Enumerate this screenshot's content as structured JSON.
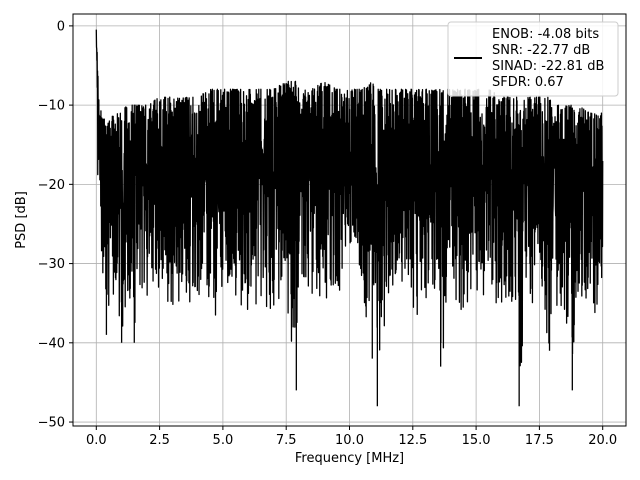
{
  "chart_data": {
    "type": "line",
    "title": "",
    "xlabel": "Frequency [MHz]",
    "ylabel": "PSD [dB]",
    "xlim": [
      -0.92,
      20.92
    ],
    "ylim": [
      -50.5,
      1.5
    ],
    "xticks": [
      0.0,
      2.5,
      5.0,
      7.5,
      10.0,
      12.5,
      15.0,
      17.5,
      20.0
    ],
    "xtick_labels": [
      "0.0",
      "2.5",
      "5.0",
      "7.5",
      "10.0",
      "12.5",
      "15.0",
      "17.5",
      "20.0"
    ],
    "yticks": [
      0,
      -10,
      -20,
      -30,
      -40,
      -50
    ],
    "ytick_labels": [
      "0",
      "−10",
      "−20",
      "−30",
      "−40",
      "−50"
    ],
    "grid": true,
    "legend": {
      "placement": "top-right",
      "entries": [
        "ENOB: -4.08 bits",
        "SNR: -22.77 dB",
        "SINAD: -22.81 dB",
        "SFDR: 0.67"
      ]
    },
    "series": [
      {
        "color": "#000000",
        "x": [
          0.0,
          0.02,
          0.04,
          0.06,
          0.08,
          0.1,
          0.15,
          0.2,
          0.25,
          0.3,
          0.4,
          0.5,
          0.6,
          0.8,
          1.0,
          1.2,
          1.5,
          1.7,
          2.0,
          2.5,
          3.0,
          3.5,
          4.0,
          4.5,
          4.7,
          5.0,
          5.5,
          6.0,
          6.5,
          7.0,
          7.5,
          7.9,
          8.0,
          8.5,
          9.0,
          9.5,
          10.0,
          10.5,
          10.9,
          11.0,
          11.1,
          11.5,
          12.0,
          12.5,
          13.0,
          13.5,
          13.6,
          14.0,
          14.5,
          15.0,
          15.5,
          16.0,
          16.5,
          16.7,
          17.0,
          17.5,
          17.9,
          18.0,
          18.5,
          18.8,
          19.0,
          19.5,
          20.0
        ],
        "lower": [
          -2,
          -8,
          -14,
          -20,
          -26,
          -22,
          -25,
          -36,
          -34,
          -30,
          -39,
          -35,
          -34,
          -37,
          -40,
          -34,
          -40,
          -33,
          -34,
          -35,
          -36,
          -35,
          -36,
          -34,
          -38,
          -33,
          -35,
          -37,
          -35,
          -36,
          -34,
          -46,
          -33,
          -34,
          -35,
          -34,
          -33,
          -35,
          -42,
          -34,
          -48,
          -35,
          -34,
          -38,
          -36,
          -34,
          -43,
          -35,
          -36,
          -34,
          -35,
          -36,
          -35,
          -48,
          -36,
          -34,
          -41,
          -35,
          -36,
          -46,
          -34,
          -36,
          -37
        ],
        "upper": [
          0,
          -2,
          -4,
          -6,
          -7,
          -8,
          -10,
          -11,
          -12,
          -11,
          -12,
          -12,
          -11,
          -11,
          -11,
          -10,
          -10,
          -10,
          -10,
          -9,
          -9,
          -9,
          -9,
          -8,
          -8,
          -8,
          -8,
          -8,
          -8,
          -8,
          -7,
          -7,
          -8,
          -8,
          -7,
          -8,
          -8,
          -8,
          -7,
          -8,
          -8,
          -8,
          -8,
          -8,
          -8,
          -8,
          -8,
          -8,
          -8,
          -8,
          -8,
          -9,
          -9,
          -9,
          -9,
          -9,
          -9,
          -10,
          -10,
          -10,
          -10,
          -11,
          -11
        ]
      }
    ]
  }
}
